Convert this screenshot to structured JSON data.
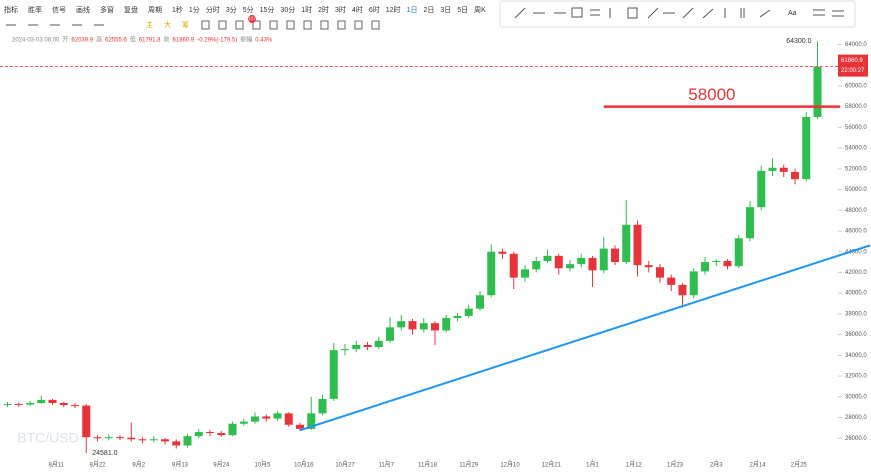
{
  "toolbar": {
    "row1": [
      "指标",
      "胜率",
      "信号",
      "画线",
      "多窗",
      "复盘",
      "周期",
      "1秒",
      "1分",
      "分时",
      "3分",
      "5分",
      "15分",
      "30分",
      "1时",
      "2时",
      "3时",
      "4时",
      "6时",
      "12时",
      "1日",
      "2日",
      "3日",
      "5日",
      "周K"
    ],
    "row2": [
      "主",
      "大",
      "筹"
    ],
    "badge": "107",
    "draw_tool_text": "Aa"
  },
  "header": {
    "datetime": "2024-03-03 08:00",
    "items": [
      {
        "name": "开",
        "value": "62039.9"
      },
      {
        "name": "高",
        "value": "62555.6"
      },
      {
        "name": "低",
        "value": "61791.8"
      },
      {
        "name": "收",
        "value": "61860.9"
      }
    ],
    "change": "-0.29%(-179.5)",
    "range_name": "振幅",
    "range_value": "0.43%"
  },
  "chart_data": {
    "type": "candlestick",
    "watermark": "BTC/USD",
    "x": [
      2,
      5,
      8,
      11,
      14,
      17,
      20,
      23,
      26,
      29,
      32,
      35,
      38,
      41,
      44,
      47,
      50,
      53,
      56,
      59,
      62,
      65,
      68,
      71,
      74,
      77,
      80,
      83,
      86,
      89,
      92,
      95,
      98,
      101,
      104,
      107,
      110,
      113,
      116,
      119,
      122,
      125,
      128,
      131,
      134,
      137,
      140,
      143,
      146,
      149,
      152,
      155,
      158,
      161,
      164,
      167,
      170,
      173,
      176,
      179,
      182,
      185,
      188,
      191,
      194,
      197,
      200,
      203,
      206,
      209,
      212,
      215,
      218
    ],
    "open": [
      29200,
      29300,
      29250,
      29400,
      29700,
      29400,
      29200,
      29150,
      26100,
      26000,
      26100,
      26050,
      25900,
      25800,
      25900,
      25700,
      25300,
      26200,
      26600,
      26500,
      26300,
      27400,
      27600,
      28100,
      27900,
      28400,
      27300,
      26900,
      28400,
      29800,
      34500,
      34600,
      35000,
      34800,
      35400,
      36700,
      37300,
      36500,
      37100,
      36400,
      37600,
      37800,
      38500,
      39800,
      44000,
      43800,
      41500,
      42300,
      43100,
      43600,
      42400,
      42800,
      43400,
      42200,
      44300,
      43000,
      46600,
      42700,
      42500,
      41500,
      40800,
      39800,
      42100,
      43000,
      43100,
      42600,
      45300,
      48300,
      51800,
      52100,
      51700,
      51000,
      57000
    ],
    "high": [
      29500,
      29450,
      29600,
      30100,
      29800,
      29500,
      29400,
      29300,
      26300,
      26400,
      26300,
      27500,
      26100,
      26200,
      26000,
      25900,
      26400,
      26900,
      26800,
      26700,
      27600,
      27900,
      28500,
      28300,
      28600,
      28500,
      27500,
      30000,
      30200,
      35200,
      35100,
      35400,
      35300,
      35800,
      37700,
      37900,
      37500,
      37600,
      37300,
      37900,
      38100,
      38900,
      40200,
      44700,
      44300,
      44000,
      42700,
      43500,
      44200,
      43800,
      43200,
      43800,
      43600,
      45400,
      44600,
      49000,
      47000,
      43100,
      42800,
      41800,
      41000,
      42400,
      43500,
      43300,
      43300,
      45600,
      48900,
      52300,
      53000,
      52400,
      52000,
      57500,
      64300
    ],
    "low": [
      29000,
      29050,
      29100,
      29300,
      29200,
      29000,
      28900,
      24581,
      25700,
      25800,
      25800,
      25700,
      25500,
      25600,
      25400,
      25000,
      25100,
      26000,
      26200,
      26100,
      26200,
      27200,
      27400,
      27600,
      27700,
      27100,
      26700,
      26800,
      28200,
      29600,
      34000,
      34300,
      34500,
      34600,
      35200,
      36400,
      36000,
      36200,
      35000,
      36200,
      37300,
      37600,
      38300,
      39600,
      43300,
      40400,
      41100,
      42000,
      42900,
      41800,
      42100,
      42500,
      40600,
      41900,
      42700,
      42800,
      41600,
      42000,
      41000,
      40200,
      38600,
      39500,
      41800,
      42600,
      42300,
      42400,
      45000,
      48000,
      51300,
      51200,
      50500,
      50800,
      56800
    ],
    "close": [
      29300,
      29250,
      29400,
      29700,
      29400,
      29200,
      29150,
      26100,
      26000,
      26100,
      26050,
      25900,
      25800,
      25900,
      25700,
      25300,
      26200,
      26600,
      26500,
      26300,
      27400,
      27600,
      28100,
      27900,
      28400,
      27300,
      26900,
      28400,
      29800,
      34500,
      34600,
      35000,
      34800,
      35400,
      36700,
      37300,
      36500,
      37100,
      36400,
      37600,
      37800,
      38500,
      39800,
      44000,
      43800,
      41500,
      42300,
      43100,
      43600,
      42400,
      42800,
      43400,
      42200,
      44300,
      43000,
      46600,
      42700,
      42500,
      41500,
      40800,
      39800,
      42100,
      43000,
      43100,
      42600,
      45300,
      48300,
      51800,
      52100,
      51700,
      51000,
      57000,
      61860.9
    ],
    "up_color": "#2ebd4e",
    "down_color": "#e8333a",
    "xlim": [
      0,
      232
    ],
    "ylim": [
      23900,
      65200
    ],
    "xticks": [
      {
        "value": 15,
        "label": "8月11"
      },
      {
        "value": 26,
        "label": "8月22"
      },
      {
        "value": 37,
        "label": "9月2"
      },
      {
        "value": 48,
        "label": "9月13"
      },
      {
        "value": 59,
        "label": "9月24"
      },
      {
        "value": 70,
        "label": "10月5"
      },
      {
        "value": 81,
        "label": "10月16"
      },
      {
        "value": 92,
        "label": "10月27"
      },
      {
        "value": 103,
        "label": "11月7"
      },
      {
        "value": 114,
        "label": "11月18"
      },
      {
        "value": 125,
        "label": "11月29"
      },
      {
        "value": 136,
        "label": "12月10"
      },
      {
        "value": 147,
        "label": "12月21"
      },
      {
        "value": 158,
        "label": "1月1"
      },
      {
        "value": 169,
        "label": "1月12"
      },
      {
        "value": 180,
        "label": "1月23"
      },
      {
        "value": 191,
        "label": "2月3"
      },
      {
        "value": 202,
        "label": "2月14"
      },
      {
        "value": 213,
        "label": "2月25"
      }
    ],
    "yticks": [
      {
        "value": 26000,
        "label": "26000.0"
      },
      {
        "value": 28000,
        "label": "28000.0"
      },
      {
        "value": 30000,
        "label": "30000.0"
      },
      {
        "value": 32000,
        "label": "32000.0"
      },
      {
        "value": 34000,
        "label": "34000.0"
      },
      {
        "value": 36000,
        "label": "36000.0"
      },
      {
        "value": 38000,
        "label": "38000.0"
      },
      {
        "value": 40000,
        "label": "40000.0"
      },
      {
        "value": 42000,
        "label": "42000.0"
      },
      {
        "value": 44000,
        "label": "44000.0"
      },
      {
        "value": 46000,
        "label": "46000.0"
      },
      {
        "value": 48000,
        "label": "48000.0"
      },
      {
        "value": 50000,
        "label": "50000.0"
      },
      {
        "value": 52000,
        "label": "52000.0"
      },
      {
        "value": 54000,
        "label": "54000.0"
      },
      {
        "value": 56000,
        "label": "56000.0"
      },
      {
        "value": 58000,
        "label": "58000.0"
      },
      {
        "value": 60000,
        "label": "60000.0"
      },
      {
        "value": 62000,
        "label": "62000.0"
      },
      {
        "value": 64000,
        "label": "64000.0"
      }
    ],
    "max_label": {
      "value": 64300,
      "label": "64300.0"
    },
    "min_label": {
      "value": 24581,
      "label": "24581.0"
    },
    "current_price": {
      "value": 61860.9,
      "label": "61860.9",
      "countdown": "22:00:27",
      "color": "#e8333a"
    },
    "level_line": {
      "value": 58000,
      "x": [
        161,
        224
      ],
      "color": "#e8333a"
    },
    "trend_line": {
      "x": [
        80,
        232
      ],
      "y": [
        26770,
        44610
      ],
      "color": "#2196f3"
    }
  }
}
